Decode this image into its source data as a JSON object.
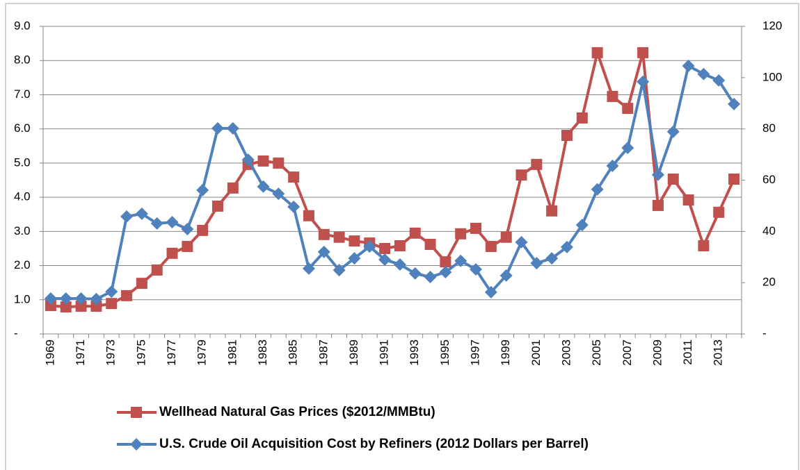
{
  "chart_data": {
    "type": "line",
    "categories": [
      "1969",
      null,
      "1971",
      null,
      "1973",
      null,
      "1975",
      null,
      "1977",
      null,
      "1979",
      null,
      "1981",
      null,
      "1983",
      null,
      "1985",
      null,
      "1987",
      null,
      "1989",
      null,
      "1991",
      null,
      "1993",
      null,
      "1995",
      null,
      "1997",
      null,
      "1999",
      null,
      "2001",
      null,
      "2003",
      null,
      "2005",
      null,
      "2007",
      null,
      "2009",
      null,
      "2011",
      null,
      "2013",
      null
    ],
    "series": [
      {
        "name": "Wellhead Natural Gas Prices ($2012/MMBtu)",
        "color": "#c0504d",
        "marker": "square",
        "axis": "y",
        "values": [
          0.83,
          0.79,
          0.81,
          0.81,
          0.89,
          1.12,
          1.48,
          1.87,
          2.36,
          2.56,
          3.03,
          3.74,
          4.27,
          4.96,
          5.06,
          5.0,
          4.59,
          3.46,
          2.91,
          2.83,
          2.72,
          2.66,
          2.5,
          2.58,
          2.95,
          2.62,
          2.11,
          2.93,
          3.09,
          2.56,
          2.83,
          4.65,
          4.96,
          3.6,
          5.81,
          6.32,
          8.23,
          6.95,
          6.6,
          8.23,
          3.76,
          4.53,
          3.92,
          2.58,
          3.56,
          4.53
        ]
      },
      {
        "name": "U.S. Crude Oil Acquisition Cost by Refiners (2012 Dollars per Barrel)",
        "color": "#4f81bd",
        "marker": "diamond",
        "axis": "y2",
        "values": [
          13.8,
          13.8,
          13.8,
          13.6,
          16.5,
          45.8,
          46.9,
          43.1,
          43.6,
          40.9,
          56.1,
          80.2,
          80.2,
          68,
          57.5,
          54.7,
          49.6,
          25.5,
          32,
          24.9,
          29.5,
          34.1,
          29,
          27.1,
          23.6,
          22.2,
          24.1,
          28.5,
          25.2,
          16.3,
          22.8,
          35.8,
          27.6,
          29.5,
          33.9,
          42.5,
          56.4,
          65.6,
          72.6,
          98.4,
          62.1,
          78.9,
          104.6,
          101.4,
          98.9,
          89.7
        ]
      }
    ],
    "ylim": [
      0,
      9
    ],
    "yticks": [
      {
        "value": 0,
        "label": "-"
      },
      {
        "value": 1,
        "label": "1.0"
      },
      {
        "value": 2,
        "label": "2.0"
      },
      {
        "value": 3,
        "label": "3.0"
      },
      {
        "value": 4,
        "label": "4.0"
      },
      {
        "value": 5,
        "label": "5.0"
      },
      {
        "value": 6,
        "label": "6.0"
      },
      {
        "value": 7,
        "label": "7.0"
      },
      {
        "value": 8,
        "label": "8.0"
      },
      {
        "value": 9,
        "label": "9.0"
      }
    ],
    "y2lim": [
      0,
      120
    ],
    "y2ticks": [
      {
        "value": 0,
        "label": "-"
      },
      20,
      40,
      60,
      80,
      100,
      120
    ],
    "grid": true,
    "legend": "bottom"
  }
}
